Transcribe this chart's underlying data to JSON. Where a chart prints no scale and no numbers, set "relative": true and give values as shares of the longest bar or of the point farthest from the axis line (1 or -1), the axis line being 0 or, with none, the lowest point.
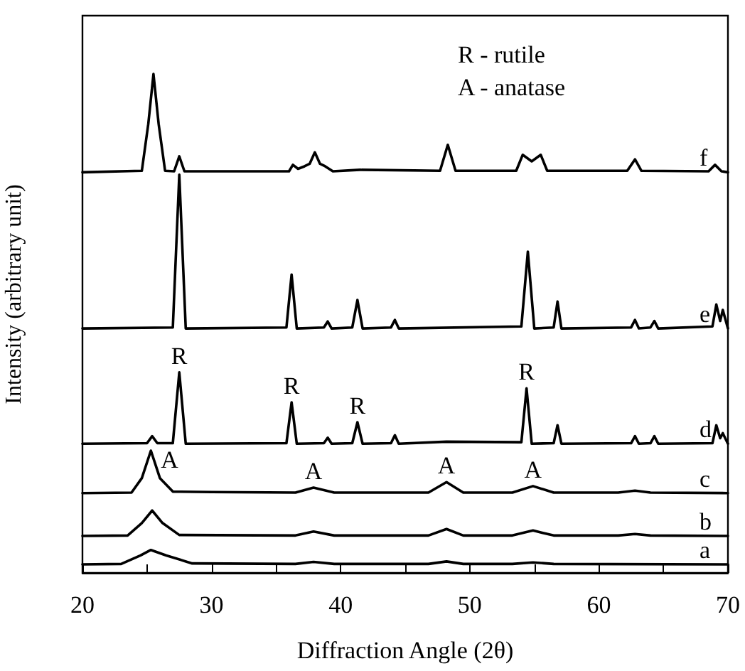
{
  "chart_data": {
    "type": "line",
    "relative": true,
    "xlabel": "Diffraction Angle (2θ)",
    "ylabel": "Intensity (arbitrary unit)",
    "xlim": [
      20,
      70
    ],
    "xticks": [
      20,
      {
        "value": 25,
        "label": null
      },
      30,
      {
        "value": 35,
        "label": null
      },
      40,
      {
        "value": 45,
        "label": null
      },
      50,
      {
        "value": 55,
        "label": null
      },
      60,
      {
        "value": 65,
        "label": null
      },
      70
    ],
    "grid": false,
    "legend": false,
    "marker": "none",
    "line_style": "solid",
    "annotations": [
      "R - rutile",
      "A - anatase",
      {
        "text": "R",
        "x": 27.5,
        "y": 0.402
      },
      {
        "text": "R",
        "x": 36.2,
        "y": 0.342
      },
      {
        "text": "R",
        "x": 41.3,
        "y": 0.302
      },
      {
        "text": "R",
        "x": 54.4,
        "y": 0.37
      },
      {
        "text": "A",
        "x": 25.3,
        "y": 0.245
      },
      {
        "text": "A",
        "x": 37.9,
        "y": 0.171
      },
      {
        "text": "A",
        "x": 48.2,
        "y": 0.182
      },
      {
        "text": "A",
        "x": 54.9,
        "y": 0.174
      }
    ],
    "series": [
      {
        "name": "a",
        "color": "#000000",
        "x": [
          20,
          23,
          24.5,
          25.3,
          26.5,
          28.5,
          36.5,
          37.9,
          39.5,
          46.8,
          48.2,
          49.5,
          53.3,
          54.9,
          56.5,
          70
        ],
        "values": [
          0.017,
          0.018,
          0.035,
          0.046,
          0.035,
          0.019,
          0.018,
          0.022,
          0.018,
          0.018,
          0.023,
          0.018,
          0.018,
          0.021,
          0.018,
          0.017
        ]
      },
      {
        "name": "b",
        "color": "#000000",
        "x": [
          20,
          23.5,
          24.6,
          25.4,
          26.2,
          27.5,
          36.5,
          37.9,
          39.5,
          46.8,
          48.2,
          49.5,
          53.3,
          54.9,
          56.5,
          61.5,
          62.8,
          64,
          70
        ],
        "values": [
          0.074,
          0.075,
          0.1,
          0.125,
          0.1,
          0.076,
          0.075,
          0.083,
          0.075,
          0.075,
          0.088,
          0.075,
          0.075,
          0.085,
          0.075,
          0.075,
          0.078,
          0.075,
          0.074
        ]
      },
      {
        "name": "c",
        "color": "#000000",
        "x": [
          20,
          23.8,
          24.6,
          25.3,
          26.0,
          27.0,
          30,
          36.5,
          37.9,
          39.5,
          46.8,
          48.2,
          49.5,
          53.3,
          54.9,
          56.5,
          61.5,
          62.8,
          64,
          70
        ],
        "values": [
          0.16,
          0.161,
          0.19,
          0.245,
          0.19,
          0.163,
          0.162,
          0.161,
          0.171,
          0.161,
          0.161,
          0.182,
          0.161,
          0.161,
          0.174,
          0.161,
          0.161,
          0.165,
          0.161,
          0.16
        ]
      },
      {
        "name": "d",
        "color": "#000000",
        "x": [
          20,
          25.0,
          25.4,
          25.8,
          27.0,
          27.5,
          28.0,
          35.8,
          36.2,
          36.6,
          38.7,
          39.0,
          39.3,
          40.9,
          41.3,
          41.7,
          43.9,
          44.2,
          44.5,
          48.2,
          54.0,
          54.4,
          54.8,
          56.5,
          56.8,
          57.1,
          62.5,
          62.8,
          63.1,
          64.0,
          64.3,
          64.6,
          68.8,
          69.1,
          69.4,
          69.6,
          70
        ],
        "values": [
          0.259,
          0.26,
          0.274,
          0.26,
          0.26,
          0.402,
          0.259,
          0.26,
          0.342,
          0.259,
          0.26,
          0.271,
          0.259,
          0.26,
          0.302,
          0.259,
          0.26,
          0.276,
          0.259,
          0.263,
          0.262,
          0.37,
          0.259,
          0.26,
          0.296,
          0.259,
          0.26,
          0.274,
          0.259,
          0.26,
          0.274,
          0.259,
          0.26,
          0.296,
          0.27,
          0.28,
          0.259
        ]
      },
      {
        "name": "e",
        "color": "#000000",
        "x": [
          20,
          27.0,
          27.5,
          28.0,
          35.8,
          36.2,
          36.6,
          38.7,
          39.0,
          39.3,
          40.9,
          41.3,
          41.7,
          43.9,
          44.2,
          44.5,
          54.0,
          54.5,
          55.0,
          56.5,
          56.8,
          57.1,
          62.5,
          62.8,
          63.1,
          64.0,
          64.3,
          64.6,
          68.8,
          69.1,
          69.4,
          69.6,
          70
        ],
        "values": [
          0.49,
          0.492,
          0.798,
          0.49,
          0.492,
          0.598,
          0.49,
          0.492,
          0.504,
          0.49,
          0.492,
          0.547,
          0.49,
          0.492,
          0.507,
          0.49,
          0.494,
          0.644,
          0.49,
          0.492,
          0.544,
          0.49,
          0.492,
          0.507,
          0.49,
          0.492,
          0.505,
          0.49,
          0.494,
          0.538,
          0.505,
          0.527,
          0.49
        ]
      },
      {
        "name": "f",
        "color": "#000000",
        "x": [
          20,
          24.6,
          25.1,
          25.5,
          25.9,
          26.4,
          27.1,
          27.5,
          27.9,
          36,
          36.3,
          36.7,
          37.2,
          37.6,
          38.0,
          38.4,
          38.8,
          39.4,
          41.5,
          47.7,
          48.3,
          48.9,
          53.6,
          54.1,
          54.8,
          55.5,
          56.0,
          62.2,
          62.8,
          63.3,
          68.5,
          69.0,
          69.5,
          70
        ],
        "values": [
          0.803,
          0.806,
          0.9,
          1.0,
          0.9,
          0.806,
          0.805,
          0.835,
          0.805,
          0.805,
          0.818,
          0.81,
          0.815,
          0.82,
          0.843,
          0.82,
          0.815,
          0.805,
          0.808,
          0.806,
          0.858,
          0.806,
          0.806,
          0.838,
          0.825,
          0.838,
          0.806,
          0.806,
          0.829,
          0.806,
          0.805,
          0.818,
          0.805,
          0.803
        ]
      }
    ]
  }
}
